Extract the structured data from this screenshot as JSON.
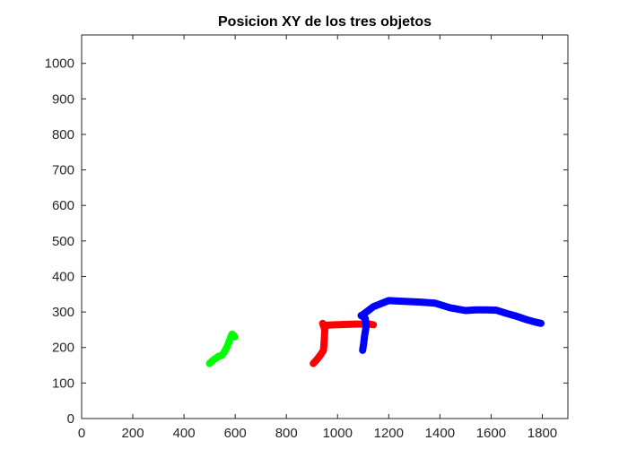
{
  "chart_data": {
    "type": "line",
    "title": "Posicion XY de los tres objetos",
    "xlabel": "",
    "ylabel": "",
    "xlim": [
      0,
      1900
    ],
    "ylim": [
      0,
      1080
    ],
    "xticks": [
      0,
      200,
      400,
      600,
      800,
      1000,
      1200,
      1400,
      1600,
      1800
    ],
    "yticks": [
      0,
      100,
      200,
      300,
      400,
      500,
      600,
      700,
      800,
      900,
      1000
    ],
    "grid": false,
    "legend": "none",
    "series": [
      {
        "color": "#00ff00",
        "x": [
          500,
          515,
          535,
          548,
          560,
          570,
          578,
          584,
          588,
          594,
          598
        ],
        "y": [
          155,
          165,
          175,
          178,
          190,
          205,
          220,
          232,
          238,
          234,
          230
        ]
      },
      {
        "color": "#ff0000",
        "x": [
          905,
          918,
          932,
          945,
          948,
          950,
          942,
          945,
          962,
          990,
          1030,
          1070,
          1100,
          1125,
          1140
        ],
        "y": [
          155,
          165,
          178,
          192,
          220,
          250,
          268,
          262,
          263,
          264,
          265,
          266,
          266,
          266,
          264
        ]
      },
      {
        "color": "#0000ff",
        "x": [
          1098,
          1102,
          1106,
          1112,
          1108,
          1092,
          1098,
          1140,
          1200,
          1260,
          1320,
          1380,
          1440,
          1500,
          1540,
          1580,
          1620,
          1660,
          1700,
          1740,
          1770,
          1795
        ],
        "y": [
          192,
          212,
          235,
          260,
          282,
          290,
          292,
          315,
          332,
          330,
          328,
          325,
          312,
          304,
          306,
          306,
          305,
          296,
          288,
          278,
          272,
          268
        ]
      }
    ]
  }
}
